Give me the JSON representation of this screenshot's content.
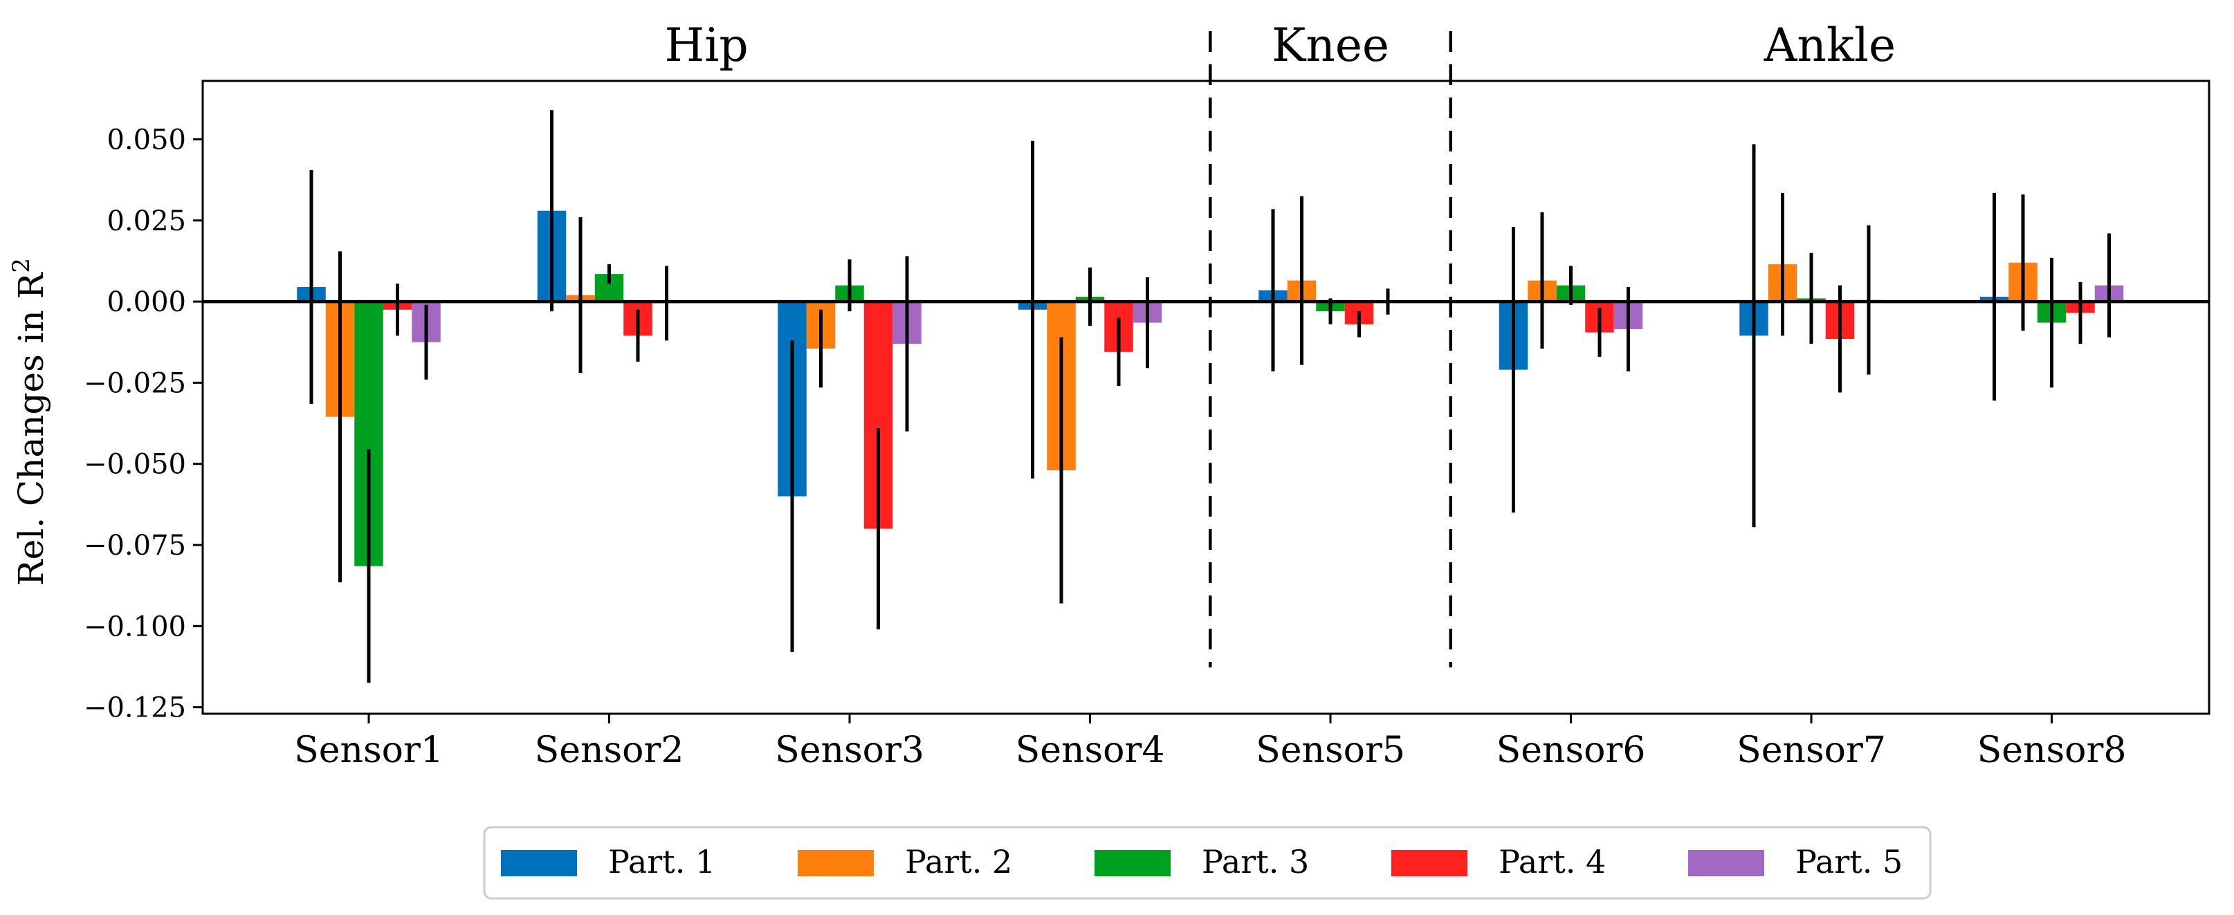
{
  "chart_data": {
    "type": "bar",
    "title": "",
    "xlabel": "",
    "ylabel": "Rel. Changes in R",
    "ylabel_superscript": "2",
    "ylim": [
      -0.127,
      0.068
    ],
    "yticks": [
      0.05,
      0.025,
      0.0,
      -0.025,
      -0.05,
      -0.075,
      -0.1,
      -0.125
    ],
    "ytick_labels": [
      "0.050",
      "0.025",
      "0.000",
      "−0.025",
      "−0.050",
      "−0.075",
      "−0.100",
      "−0.125"
    ],
    "categories": [
      "Sensor1",
      "Sensor2",
      "Sensor3",
      "Sensor4",
      "Sensor5",
      "Sensor6",
      "Sensor7",
      "Sensor8"
    ],
    "series": [
      {
        "name": "Part. 1",
        "color": "#0072bd",
        "values": [
          0.0045,
          0.028,
          -0.06,
          -0.0025,
          0.0035,
          -0.021,
          -0.0105,
          0.0015
        ],
        "errors": [
          0.036,
          0.031,
          0.048,
          0.052,
          0.025,
          0.044,
          0.059,
          0.032
        ]
      },
      {
        "name": "Part. 2",
        "color": "#ff7f0e",
        "values": [
          -0.0355,
          0.002,
          -0.0145,
          -0.052,
          0.0065,
          0.0065,
          0.0115,
          0.012
        ],
        "errors": [
          0.051,
          0.024,
          0.012,
          0.041,
          0.026,
          0.021,
          0.022,
          0.021
        ]
      },
      {
        "name": "Part. 3",
        "color": "#00a020",
        "values": [
          -0.0815,
          0.0085,
          0.005,
          0.0015,
          -0.003,
          0.005,
          0.001,
          -0.0065
        ],
        "errors": [
          0.036,
          0.003,
          0.008,
          0.009,
          0.004,
          0.006,
          0.014,
          0.02
        ]
      },
      {
        "name": "Part. 4",
        "color": "#ff2020",
        "values": [
          -0.0025,
          -0.0105,
          -0.07,
          -0.0155,
          -0.007,
          -0.0095,
          -0.0115,
          -0.0035
        ]
      },
      {
        "name": "Part. 5",
        "color": "#a468c4",
        "values": [
          -0.0125,
          -0.0005,
          -0.013,
          -0.0065,
          0.0,
          -0.0085,
          0.0005,
          0.005
        ],
        "errors": [
          0.0115,
          0.0115,
          0.027,
          0.014,
          0.004,
          0.013,
          0.023,
          0.016
        ]
      }
    ],
    "part4_errors": [
      0.008,
      0.008,
      0.031,
      0.0105,
      0.004,
      0.0075,
      0.0165,
      0.0095
    ],
    "regions": [
      {
        "label": "Hip",
        "first_category": 0,
        "last_category": 3
      },
      {
        "label": "Knee",
        "first_category": 4,
        "last_category": 4
      },
      {
        "label": "Ankle",
        "first_category": 5,
        "last_category": 7
      }
    ],
    "legend_position": "bottom-center",
    "grid": false
  }
}
